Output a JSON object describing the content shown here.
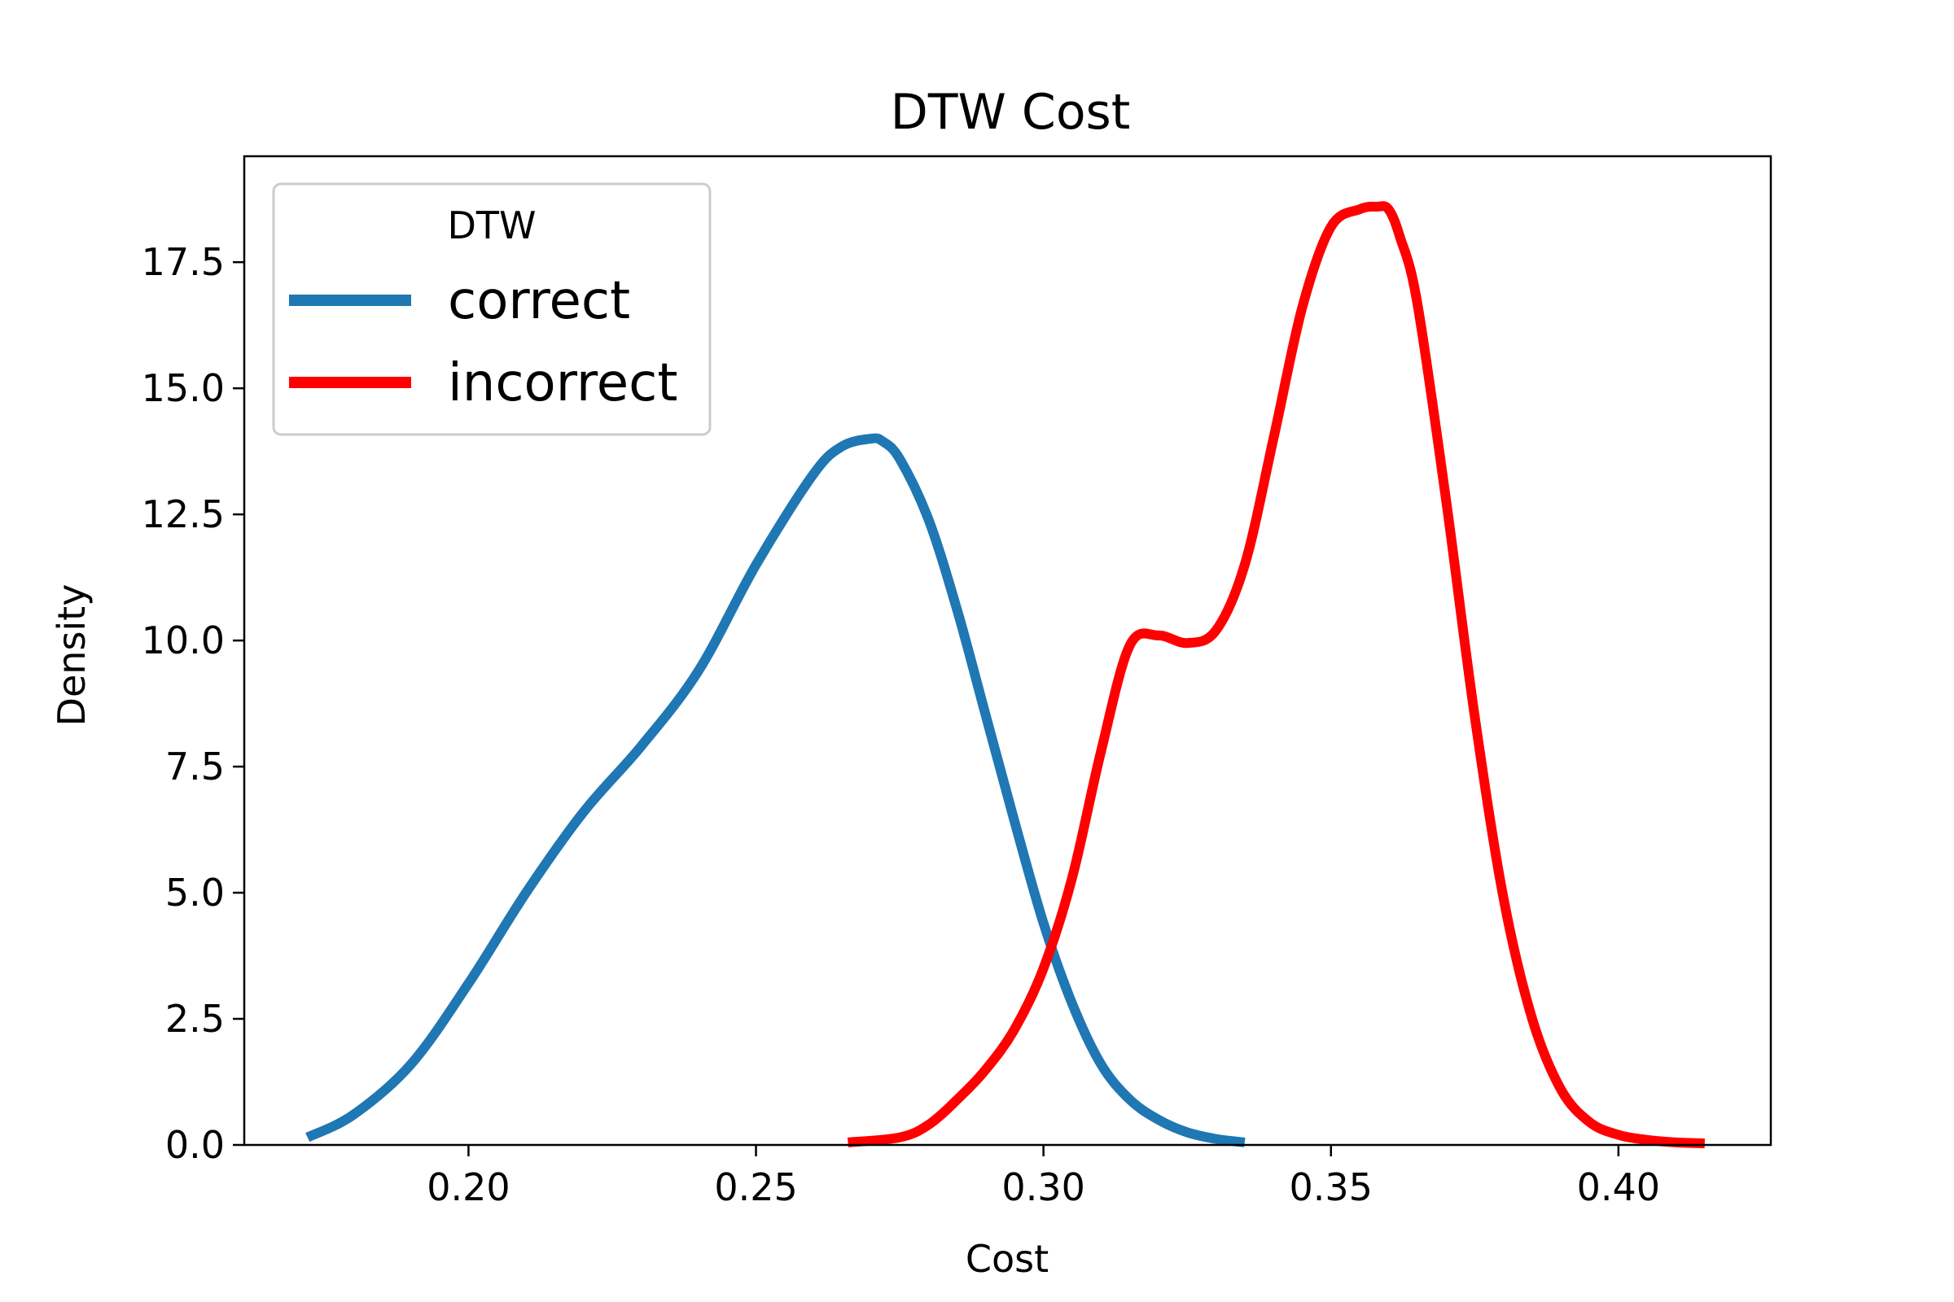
{
  "chart_data": {
    "type": "line",
    "title": "DTW Cost",
    "xlabel": "Cost",
    "ylabel": "Density",
    "xlim": [
      0.161,
      0.4265
    ],
    "ylim": [
      0,
      19.6
    ],
    "x_ticks": [
      "0.20",
      "0.25",
      "0.30",
      "0.35",
      "0.40"
    ],
    "y_ticks": [
      "0.0",
      "2.5",
      "5.0",
      "7.5",
      "10.0",
      "12.5",
      "15.0",
      "17.5"
    ],
    "grid": false,
    "legend": {
      "title": "DTW",
      "position": "top-left"
    },
    "series": [
      {
        "name": "correct",
        "color": "#1f77b4",
        "x": [
          0.172,
          0.18,
          0.19,
          0.2,
          0.21,
          0.22,
          0.23,
          0.24,
          0.25,
          0.26,
          0.265,
          0.27,
          0.272,
          0.275,
          0.28,
          0.285,
          0.29,
          0.295,
          0.3,
          0.305,
          0.31,
          0.315,
          0.32,
          0.325,
          0.33,
          0.335
        ],
        "y": [
          0.15,
          0.6,
          1.6,
          3.2,
          5.0,
          6.6,
          7.9,
          9.4,
          11.5,
          13.3,
          13.85,
          14.0,
          13.95,
          13.6,
          12.4,
          10.6,
          8.5,
          6.4,
          4.4,
          2.8,
          1.6,
          0.9,
          0.5,
          0.25,
          0.12,
          0.05
        ]
      },
      {
        "name": "incorrect",
        "color": "#ff0000",
        "x": [
          0.266,
          0.275,
          0.28,
          0.285,
          0.29,
          0.295,
          0.3,
          0.305,
          0.31,
          0.315,
          0.32,
          0.325,
          0.33,
          0.335,
          0.34,
          0.345,
          0.35,
          0.355,
          0.358,
          0.36,
          0.362,
          0.365,
          0.37,
          0.375,
          0.38,
          0.385,
          0.39,
          0.395,
          0.4,
          0.405,
          0.41,
          0.415
        ],
        "y": [
          0.05,
          0.15,
          0.4,
          0.9,
          1.5,
          2.3,
          3.5,
          5.3,
          7.8,
          9.9,
          10.1,
          9.95,
          10.2,
          11.5,
          14.0,
          16.6,
          18.2,
          18.55,
          18.6,
          18.55,
          18.0,
          16.7,
          12.8,
          8.5,
          4.9,
          2.5,
          1.1,
          0.45,
          0.2,
          0.1,
          0.05,
          0.03
        ]
      }
    ]
  }
}
